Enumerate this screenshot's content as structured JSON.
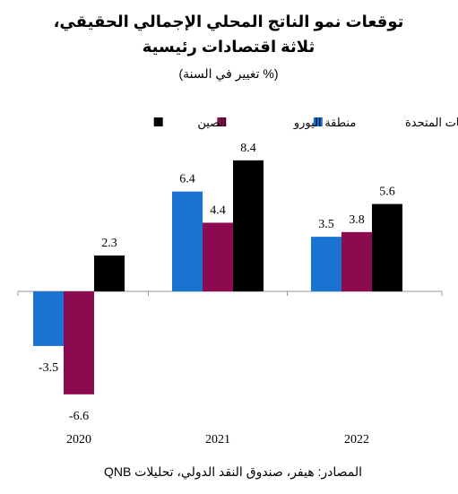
{
  "chart_data": {
    "type": "bar",
    "title_line1": "توقعات نمو الناتج المحلي الإجمالي الحقيقي،",
    "title_line2": "ثلاثة اقتصادات رئيسية",
    "subtitle": "(% تغيير في السنة)",
    "categories": [
      "2020",
      "2021",
      "2022"
    ],
    "series": [
      {
        "name": "الولايات المتحدة",
        "color": "#1a73d0",
        "values": [
          -3.5,
          6.4,
          3.5
        ],
        "labels": [
          "-3.5",
          "6.4",
          "3.5"
        ]
      },
      {
        "name": "منطقة اليورو",
        "color": "#8b0a50",
        "values": [
          -6.6,
          4.4,
          3.8
        ],
        "labels": [
          "-6.6",
          "4.4",
          "3.8"
        ]
      },
      {
        "name": "الصين",
        "color": "#000000",
        "values": [
          2.3,
          8.4,
          5.6
        ],
        "labels": [
          "2.3",
          "8.4",
          "5.6"
        ]
      }
    ],
    "ylim": [
      -7.5,
      9.0
    ],
    "grid": false,
    "legend_position": "top",
    "source": "المصادر: هيفر، صندوق النقد الدولي، تحليلات QNB"
  }
}
